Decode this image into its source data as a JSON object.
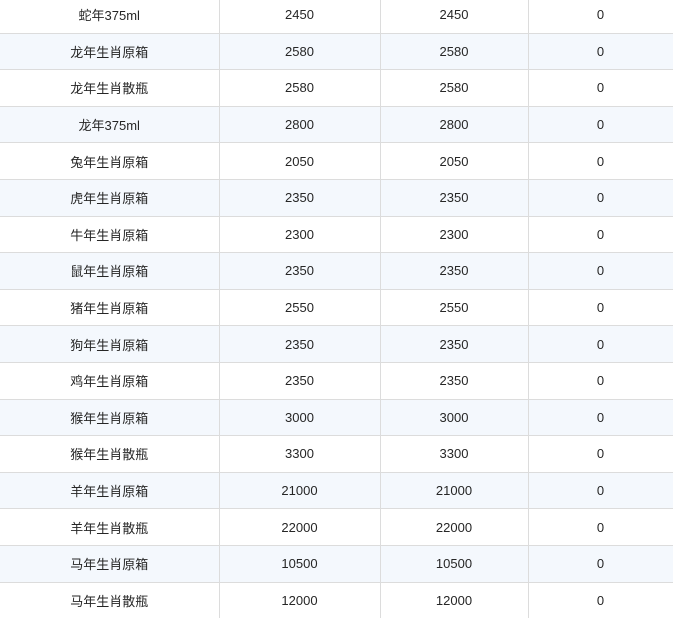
{
  "colors": {
    "stripe_row_bg": "#f4f8fd",
    "plain_row_bg": "#ffffff",
    "border": "#dcdcdc",
    "text": "#262626"
  },
  "table": {
    "rows": [
      {
        "name": "蛇年375ml",
        "value1": "2450",
        "value2": "2450",
        "value3": "0"
      },
      {
        "name": "龙年生肖原箱",
        "value1": "2580",
        "value2": "2580",
        "value3": "0"
      },
      {
        "name": "龙年生肖散瓶",
        "value1": "2580",
        "value2": "2580",
        "value3": "0"
      },
      {
        "name": "龙年375ml",
        "value1": "2800",
        "value2": "2800",
        "value3": "0"
      },
      {
        "name": "兔年生肖原箱",
        "value1": "2050",
        "value2": "2050",
        "value3": "0"
      },
      {
        "name": "虎年生肖原箱",
        "value1": "2350",
        "value2": "2350",
        "value3": "0"
      },
      {
        "name": "牛年生肖原箱",
        "value1": "2300",
        "value2": "2300",
        "value3": "0"
      },
      {
        "name": "鼠年生肖原箱",
        "value1": "2350",
        "value2": "2350",
        "value3": "0"
      },
      {
        "name": "猪年生肖原箱",
        "value1": "2550",
        "value2": "2550",
        "value3": "0"
      },
      {
        "name": "狗年生肖原箱",
        "value1": "2350",
        "value2": "2350",
        "value3": "0"
      },
      {
        "name": "鸡年生肖原箱",
        "value1": "2350",
        "value2": "2350",
        "value3": "0"
      },
      {
        "name": "猴年生肖原箱",
        "value1": "3000",
        "value2": "3000",
        "value3": "0"
      },
      {
        "name": "猴年生肖散瓶",
        "value1": "3300",
        "value2": "3300",
        "value3": "0"
      },
      {
        "name": "羊年生肖原箱",
        "value1": "21000",
        "value2": "21000",
        "value3": "0"
      },
      {
        "name": "羊年生肖散瓶",
        "value1": "22000",
        "value2": "22000",
        "value3": "0"
      },
      {
        "name": "马年生肖原箱",
        "value1": "10500",
        "value2": "10500",
        "value3": "0"
      },
      {
        "name": "马年生肖散瓶",
        "value1": "12000",
        "value2": "12000",
        "value3": "0"
      }
    ]
  }
}
